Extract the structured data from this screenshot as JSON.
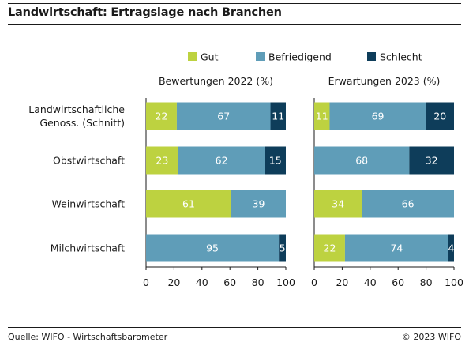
{
  "title": "Landwirtschaft: Ertragslage nach Branchen",
  "footer": {
    "source": "Quelle: WIFO - Wirtschaftsbarometer",
    "copyright": "© 2023 WIFO"
  },
  "chart_data": {
    "type": "bar",
    "orientation": "horizontal",
    "stacked": true,
    "categories": [
      "Landwirtschaftliche\nGenoss. (Schnitt)",
      "Obstwirtschaft",
      "Weinwirtschaft",
      "Milchwirtschaft"
    ],
    "legend": {
      "placement": "top-right",
      "items": [
        "Gut",
        "Befriedigend",
        "Schlecht"
      ]
    },
    "colors": {
      "Gut": "#bdd240",
      "Befriedigend": "#5f9db8",
      "Schlecht": "#0e3d5a"
    },
    "panels": [
      {
        "title": "Bewertungen 2022 (%)",
        "xlim": [
          0,
          100
        ],
        "xticks": [
          0,
          20,
          40,
          60,
          80,
          100
        ],
        "series": [
          {
            "name": "Gut",
            "values": [
              22,
              23,
              61,
              0
            ]
          },
          {
            "name": "Befriedigend",
            "values": [
              67,
              62,
              39,
              95
            ]
          },
          {
            "name": "Schlecht",
            "values": [
              11,
              15,
              0,
              5
            ]
          }
        ]
      },
      {
        "title": "Erwartungen 2023 (%)",
        "xlim": [
          0,
          100
        ],
        "xticks": [
          0,
          20,
          40,
          60,
          80,
          100
        ],
        "series": [
          {
            "name": "Gut",
            "values": [
              11,
              0,
              34,
              22
            ]
          },
          {
            "name": "Befriedigend",
            "values": [
              69,
              68,
              66,
              74
            ]
          },
          {
            "name": "Schlecht",
            "values": [
              20,
              32,
              0,
              4
            ]
          }
        ]
      }
    ]
  }
}
